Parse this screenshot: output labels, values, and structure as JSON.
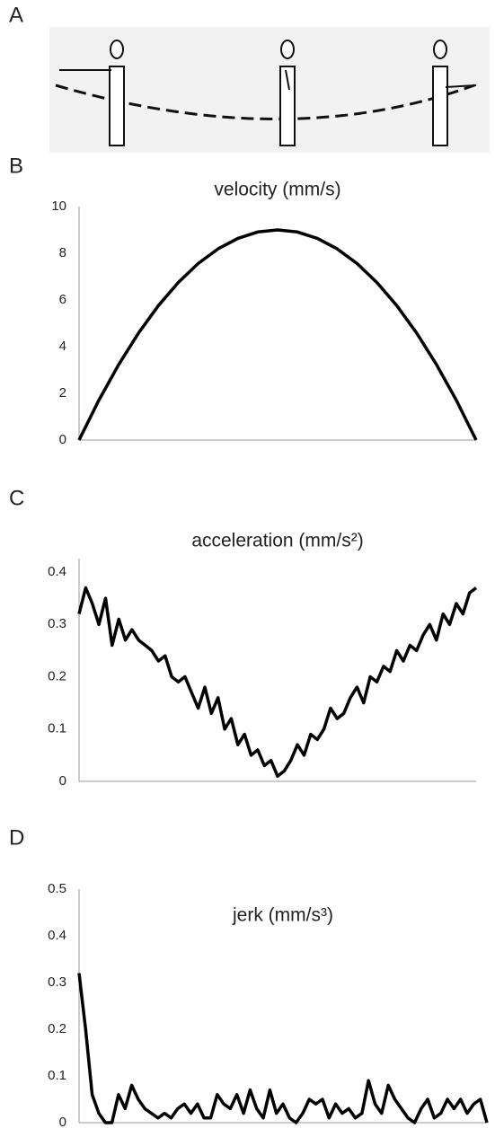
{
  "panel_labels": [
    "A",
    "B",
    "C",
    "D"
  ],
  "chart_data": [
    {
      "type": "line",
      "title": "velocity (mm/s)",
      "color": "#000000",
      "values": [
        0,
        1.71,
        3.24,
        4.59,
        5.76,
        6.75,
        7.56,
        8.19,
        8.64,
        8.91,
        9,
        8.91,
        8.64,
        8.19,
        7.56,
        6.75,
        5.76,
        4.59,
        3.24,
        1.71,
        0
      ],
      "ylim": [
        0,
        10
      ],
      "yticks": [
        0,
        2,
        4,
        6,
        8,
        10
      ]
    },
    {
      "type": "line",
      "title": "acceleration (mm/s²)",
      "color": "#000000",
      "values": [
        0.32,
        0.37,
        0.34,
        0.3,
        0.35,
        0.26,
        0.31,
        0.27,
        0.29,
        0.27,
        0.26,
        0.25,
        0.23,
        0.24,
        0.2,
        0.19,
        0.2,
        0.17,
        0.14,
        0.18,
        0.13,
        0.16,
        0.1,
        0.12,
        0.07,
        0.09,
        0.05,
        0.06,
        0.03,
        0.04,
        0.01,
        0.02,
        0.04,
        0.07,
        0.05,
        0.09,
        0.08,
        0.1,
        0.14,
        0.12,
        0.13,
        0.16,
        0.18,
        0.15,
        0.2,
        0.19,
        0.22,
        0.21,
        0.25,
        0.23,
        0.26,
        0.25,
        0.28,
        0.3,
        0.27,
        0.32,
        0.3,
        0.34,
        0.32,
        0.36,
        0.37
      ],
      "ylim": [
        0,
        0.4
      ],
      "yticks": [
        0,
        0.1,
        0.2,
        0.3,
        0.4
      ]
    },
    {
      "type": "line",
      "title": "jerk (mm/s³)",
      "color": "#000000",
      "values": [
        0.32,
        0.2,
        0.06,
        0.02,
        0,
        0,
        0.06,
        0.03,
        0.08,
        0.05,
        0.03,
        0.02,
        0.01,
        0.02,
        0.01,
        0.03,
        0.04,
        0.02,
        0.04,
        0.01,
        0.01,
        0.06,
        0.04,
        0.03,
        0.06,
        0.02,
        0.07,
        0.03,
        0.01,
        0.07,
        0.02,
        0.04,
        0.01,
        0,
        0.02,
        0.05,
        0.04,
        0.05,
        0.01,
        0.04,
        0.02,
        0.03,
        0.01,
        0.02,
        0.09,
        0.04,
        0.02,
        0.08,
        0.05,
        0.03,
        0.01,
        0,
        0.03,
        0.05,
        0.01,
        0.02,
        0.05,
        0.03,
        0.05,
        0.02,
        0.04,
        0.05,
        0
      ],
      "ylim": [
        0,
        0.5
      ],
      "yticks": [
        0,
        0.1,
        0.2,
        0.3,
        0.4,
        0.5
      ]
    }
  ]
}
